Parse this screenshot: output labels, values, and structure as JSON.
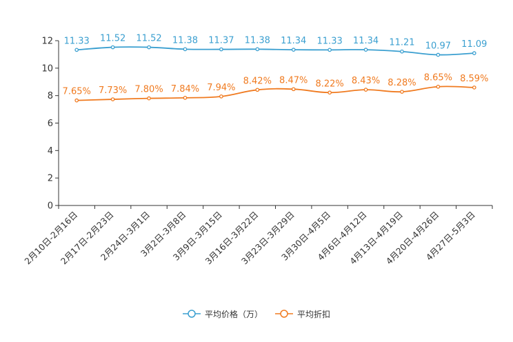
{
  "chart_data": {
    "type": "line",
    "categories": [
      "2月10日-2月16日",
      "2月17日-2月23日",
      "2月24日-3月1日",
      "3月2日-3月8日",
      "3月9日-3月15日",
      "3月16日-3月22日",
      "3月23日-3月29日",
      "3月30日-4月5日",
      "4月6日-4月12日",
      "4月13日-4月19日",
      "4月20日-4月26日",
      "4月27日-5月3日"
    ],
    "ylim": [
      0,
      12
    ],
    "yticks": [
      0,
      2,
      4,
      6,
      8,
      10,
      12
    ],
    "series": [
      {
        "name": "平均价格（万）",
        "color": "#3a9fd0",
        "values": [
          11.33,
          11.52,
          11.52,
          11.38,
          11.37,
          11.38,
          11.34,
          11.33,
          11.34,
          11.21,
          10.97,
          11.09
        ],
        "labels": [
          "11.33",
          "11.52",
          "11.52",
          "11.38",
          "11.37",
          "11.38",
          "11.34",
          "11.33",
          "11.34",
          "11.21",
          "10.97",
          "11.09"
        ]
      },
      {
        "name": "平均折扣",
        "color": "#f07a1f",
        "values": [
          7.65,
          7.73,
          7.8,
          7.84,
          7.94,
          8.42,
          8.47,
          8.22,
          8.43,
          8.28,
          8.65,
          8.59
        ],
        "labels": [
          "7.65%",
          "7.73%",
          "7.80%",
          "7.84%",
          "7.94%",
          "8.42%",
          "8.47%",
          "8.22%",
          "8.43%",
          "8.28%",
          "8.65%",
          "8.59%"
        ]
      }
    ],
    "title": "",
    "xlabel": "",
    "ylabel": "",
    "legend": "bottom-center"
  }
}
